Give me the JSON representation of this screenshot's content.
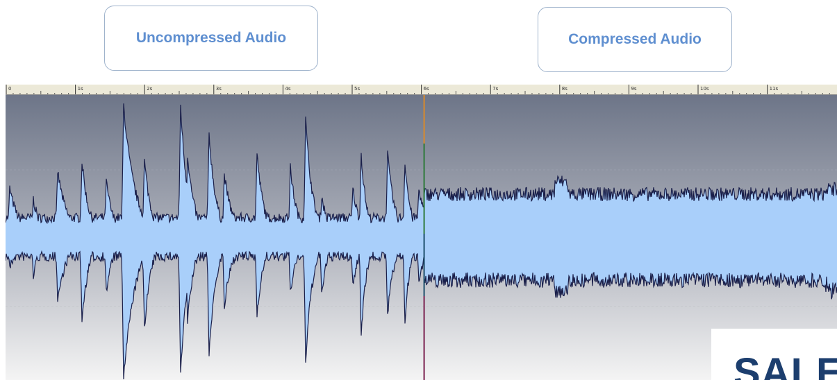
{
  "labels": {
    "uncompressed": "Uncompressed Audio",
    "compressed": "Compressed Audio"
  },
  "timeline": {
    "unit": "s",
    "ticks": [
      "0",
      "1s",
      "2s",
      "3s",
      "4s",
      "5s",
      "6s",
      "7s",
      "8s",
      "9s",
      "10s",
      "11s"
    ]
  },
  "playhead_seconds": 6.05,
  "logo_text": "SALES",
  "colors": {
    "waveform_fill": "#a9cffa",
    "waveform_outline": "#1a1f4a",
    "background_top": "#6d7588",
    "background_bottom": "#f4f4f4",
    "label_text": "#5f8fd0",
    "label_border": "#9fb3cc",
    "ruler_bg": "#ece9d8",
    "logo_text": "#1c3e6e"
  }
}
